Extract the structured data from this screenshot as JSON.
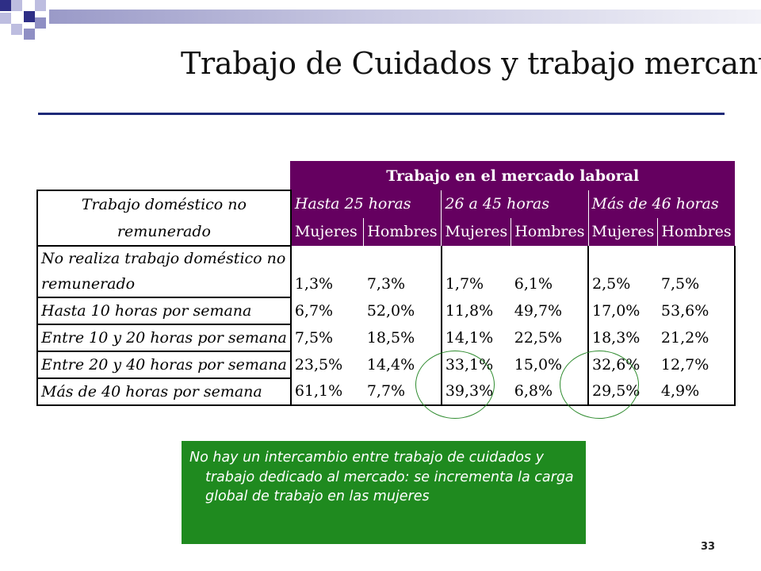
{
  "title": "Trabajo de Cuidados y trabajo mercantil",
  "table": {
    "group_header": "Trabajo en el mercado laboral",
    "row_header": "Trabajo doméstico no remunerado",
    "columns": [
      "Hasta 25 horas",
      "26 a 45 horas",
      "Más de 46 horas"
    ],
    "sex_labels": [
      "Mujeres",
      "Hombres",
      "Mujeres",
      "Hombres",
      "Mujeres",
      "Hombres"
    ],
    "rows": [
      {
        "label_line1": "No realiza trabajo doméstico no",
        "label_line2": "remunerado",
        "values": [
          "1,3%",
          "7,3%",
          "1,7%",
          "6,1%",
          "2,5%",
          "7,5%"
        ]
      },
      {
        "label": "Hasta 10 horas por semana",
        "values": [
          "6,7%",
          "52,0%",
          "11,8%",
          "49,7%",
          "17,0%",
          "53,6%"
        ]
      },
      {
        "label": "Entre 10 y 20 horas por semana",
        "values": [
          "7,5%",
          "18,5%",
          "14,1%",
          "22,5%",
          "18,3%",
          "21,2%"
        ]
      },
      {
        "label": "Entre 20 y 40 horas por semana",
        "values": [
          "23,5%",
          "14,4%",
          "33,1%",
          "15,0%",
          "32,6%",
          "12,7%"
        ]
      },
      {
        "label": "Más de 40 horas por semana",
        "values": [
          "61,1%",
          "7,7%",
          "39,3%",
          "6,8%",
          "29,5%",
          "4,9%"
        ]
      }
    ]
  },
  "note": "No hay un intercambio entre trabajo de cuidados y trabajo dedicado al mercado: se incrementa la carga global de  trabajo en las mujeres",
  "page_number": "33",
  "colors": {
    "header_bg": "#650060",
    "note_bg": "#1f8a1f",
    "circle": "#2e8b2e",
    "title_rule": "#1e2a78"
  }
}
